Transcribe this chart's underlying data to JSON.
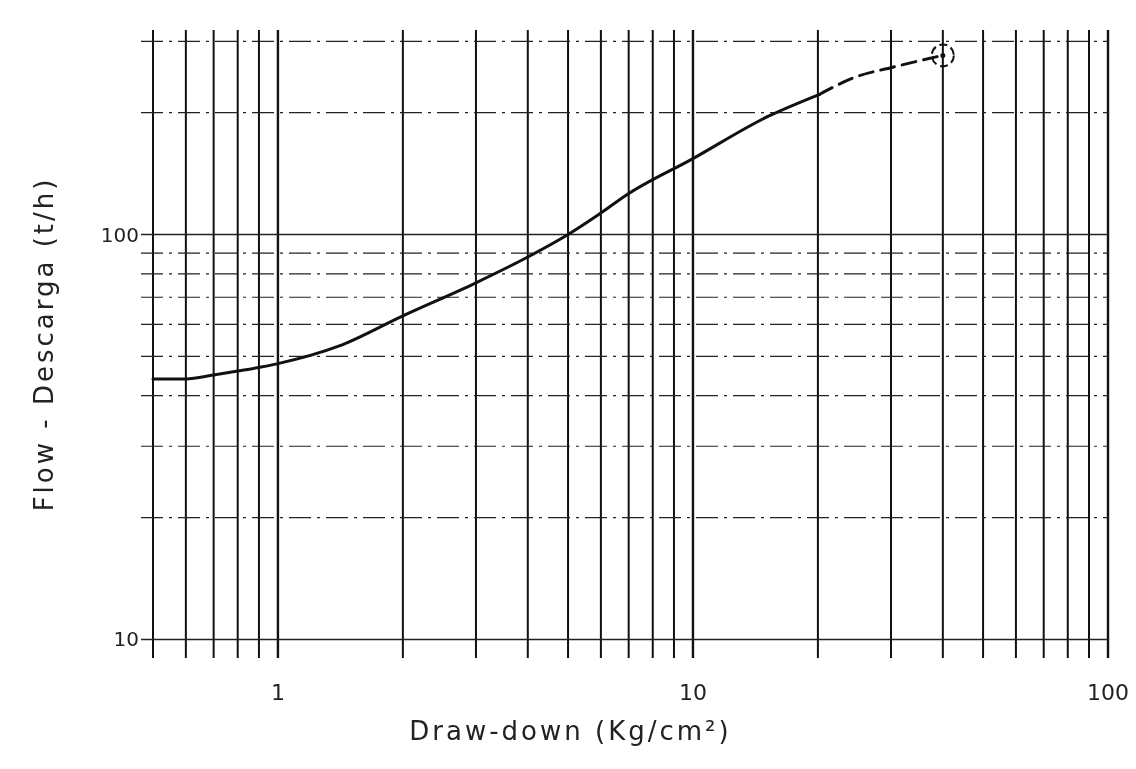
{
  "chart_data": {
    "type": "line",
    "xlabel": "Draw-down  (Kg/cm²)",
    "ylabel": "Flow - Descarga  (t/h)",
    "log": "xy",
    "grid": true,
    "xlim": [
      0.5,
      100
    ],
    "ylim": [
      9,
      320
    ],
    "xticks": [
      {
        "value": 0.5,
        "label": null
      },
      {
        "value": 0.6,
        "label": null
      },
      {
        "value": 0.7,
        "label": null
      },
      {
        "value": 0.8,
        "label": null
      },
      {
        "value": 0.9,
        "label": null
      },
      1,
      {
        "value": 2,
        "label": null
      },
      {
        "value": 3,
        "label": null
      },
      {
        "value": 4,
        "label": null
      },
      {
        "value": 5,
        "label": null
      },
      {
        "value": 6,
        "label": null
      },
      {
        "value": 7,
        "label": null
      },
      {
        "value": 8,
        "label": null
      },
      {
        "value": 9,
        "label": null
      },
      10,
      {
        "value": 20,
        "label": null
      },
      {
        "value": 30,
        "label": null
      },
      {
        "value": 40,
        "label": null
      },
      {
        "value": 50,
        "label": null
      },
      {
        "value": 60,
        "label": null
      },
      {
        "value": 70,
        "label": null
      },
      {
        "value": 80,
        "label": null
      },
      {
        "value": 90,
        "label": null
      },
      100
    ],
    "yticks": [
      10,
      {
        "value": 20,
        "label": null
      },
      {
        "value": 30,
        "label": null
      },
      {
        "value": 40,
        "label": null
      },
      {
        "value": 50,
        "label": null
      },
      {
        "value": 60,
        "label": null
      },
      {
        "value": 70,
        "label": null
      },
      {
        "value": 80,
        "label": null
      },
      {
        "value": 90,
        "label": null
      },
      100,
      {
        "value": 200,
        "label": null
      },
      {
        "value": 300,
        "label": null
      }
    ],
    "series": [
      {
        "color": "#111111",
        "line_style": "solid",
        "x": [
          0.5,
          0.6,
          0.7,
          0.8,
          1,
          1.4,
          2,
          3,
          4,
          5,
          6,
          6.9,
          10,
          15.2,
          20.2
        ],
        "values": [
          44,
          44,
          45,
          46,
          48,
          53,
          63,
          76,
          88,
          100,
          113,
          125,
          154,
          196,
          222
        ]
      },
      {
        "color": "#111111",
        "line_style": "dashed",
        "x": [
          20.2,
          24.4,
          30.3,
          40
        ],
        "values": [
          222,
          244,
          259,
          277
        ]
      },
      {
        "type": "scatter",
        "color": "#111111",
        "marker": "circle",
        "x": [
          40
        ],
        "values": [
          277
        ]
      }
    ]
  }
}
